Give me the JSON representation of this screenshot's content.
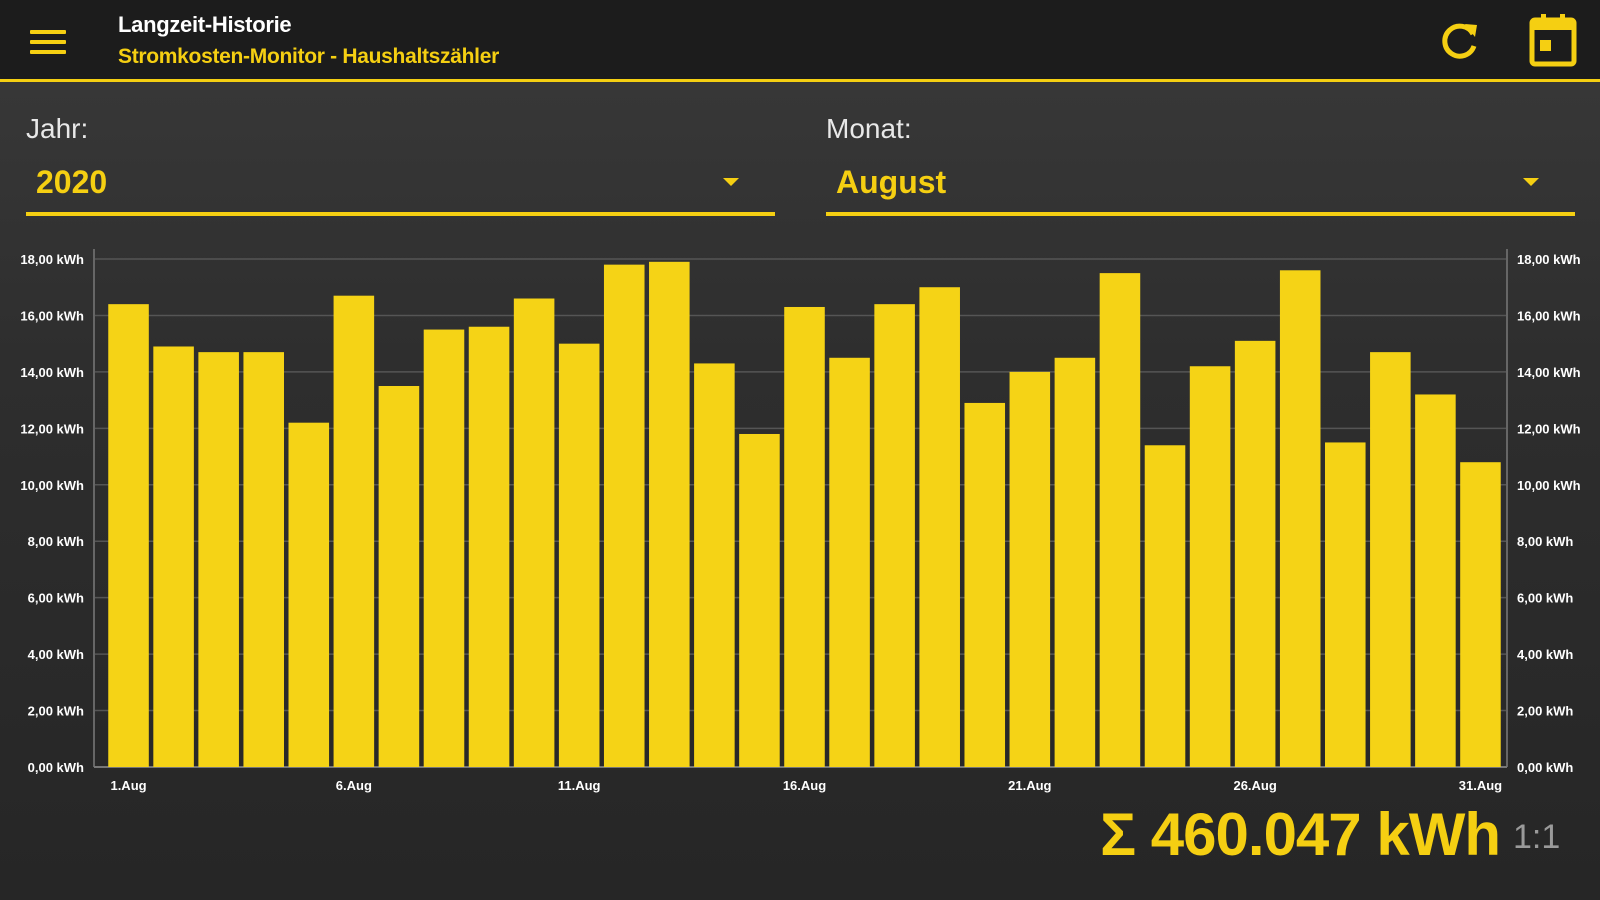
{
  "header": {
    "title": "Langzeit-Historie",
    "subtitle": "Stromkosten-Monitor - Haushaltszähler",
    "icons": {
      "menu": "menu-icon",
      "refresh": "refresh-icon",
      "calendar": "calendar-icon"
    }
  },
  "filters": {
    "year": {
      "label": "Jahr:",
      "value": "2020"
    },
    "month": {
      "label": "Monat:",
      "value": "August"
    }
  },
  "colors": {
    "accent": "#f5cf12",
    "bar": "#f5d316",
    "background": "#2e2e2e",
    "appbar": "#1c1c1c"
  },
  "chart_data": {
    "type": "bar",
    "categories": [
      "1.Aug",
      "2.Aug",
      "3.Aug",
      "4.Aug",
      "5.Aug",
      "6.Aug",
      "7.Aug",
      "8.Aug",
      "9.Aug",
      "10.Aug",
      "11.Aug",
      "12.Aug",
      "13.Aug",
      "14.Aug",
      "15.Aug",
      "16.Aug",
      "17.Aug",
      "18.Aug",
      "19.Aug",
      "20.Aug",
      "21.Aug",
      "22.Aug",
      "23.Aug",
      "24.Aug",
      "25.Aug",
      "26.Aug",
      "27.Aug",
      "28.Aug",
      "29.Aug",
      "30.Aug",
      "31.Aug"
    ],
    "x_tick_labels": [
      "1.Aug",
      "6.Aug",
      "11.Aug",
      "16.Aug",
      "21.Aug",
      "26.Aug",
      "31.Aug"
    ],
    "values": [
      16.4,
      14.9,
      14.7,
      14.7,
      12.2,
      16.7,
      13.5,
      15.5,
      15.6,
      16.6,
      15.0,
      17.8,
      17.9,
      14.3,
      11.8,
      16.3,
      14.5,
      16.4,
      17.0,
      12.9,
      14.0,
      14.5,
      17.5,
      11.4,
      14.2,
      15.1,
      17.6,
      11.5,
      14.7,
      13.2,
      10.8
    ],
    "y_tick_labels": [
      "0,00 kWh",
      "2,00 kWh",
      "4,00 kWh",
      "6,00 kWh",
      "8,00 kWh",
      "10,00 kWh",
      "12,00 kWh",
      "14,00 kWh",
      "16,00 kWh",
      "18,00 kWh"
    ],
    "ylim": [
      0,
      18
    ],
    "grid": true,
    "y_axis": "both sides"
  },
  "summary": {
    "total": "Σ 460.047 kWh",
    "ratio": "1:1"
  }
}
